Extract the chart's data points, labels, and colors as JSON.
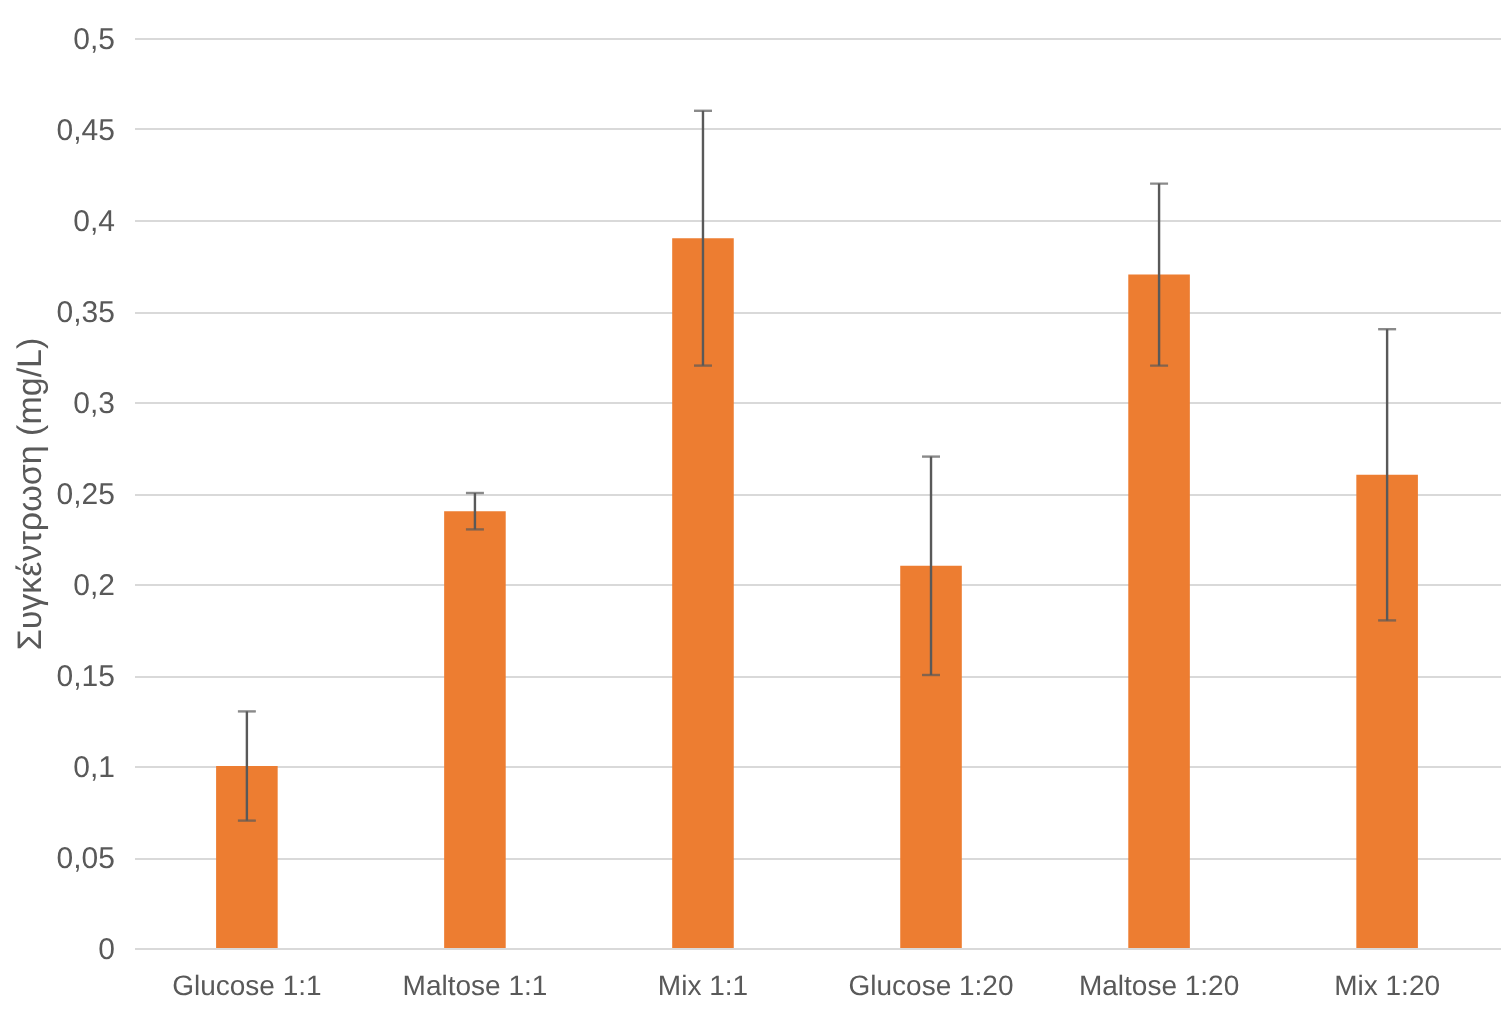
{
  "chart_data": {
    "type": "bar",
    "ylabel": "Συγκέντρωση (mg/L)",
    "categories": [
      "Glucose 1:1",
      "Maltose 1:1",
      "Mix 1:1",
      "Glucose 1:20",
      "Maltose 1:20",
      "Mix 1:20"
    ],
    "values": [
      0.1,
      0.24,
      0.39,
      0.21,
      0.37,
      0.26
    ],
    "errors": [
      [
        0.07,
        0.13
      ],
      [
        0.23,
        0.25
      ],
      [
        0.32,
        0.46
      ],
      [
        0.15,
        0.27
      ],
      [
        0.32,
        0.42
      ],
      [
        0.18,
        0.34
      ]
    ],
    "color": "#ed7d31",
    "ylim": [
      0,
      0.5
    ],
    "yticks": [
      0,
      {
        "value": 0.05,
        "label": "0,05"
      },
      {
        "value": 0.1,
        "label": "0,1"
      },
      {
        "value": 0.15,
        "label": "0,15"
      },
      {
        "value": 0.2,
        "label": "0,2"
      },
      {
        "value": 0.25,
        "label": "0,25"
      },
      {
        "value": 0.3,
        "label": "0,3"
      },
      {
        "value": 0.35,
        "label": "0,35"
      },
      {
        "value": 0.4,
        "label": "0,4"
      },
      {
        "value": 0.45,
        "label": "0,45"
      },
      {
        "value": 0.5,
        "label": "0,5"
      }
    ],
    "grid": "y"
  }
}
